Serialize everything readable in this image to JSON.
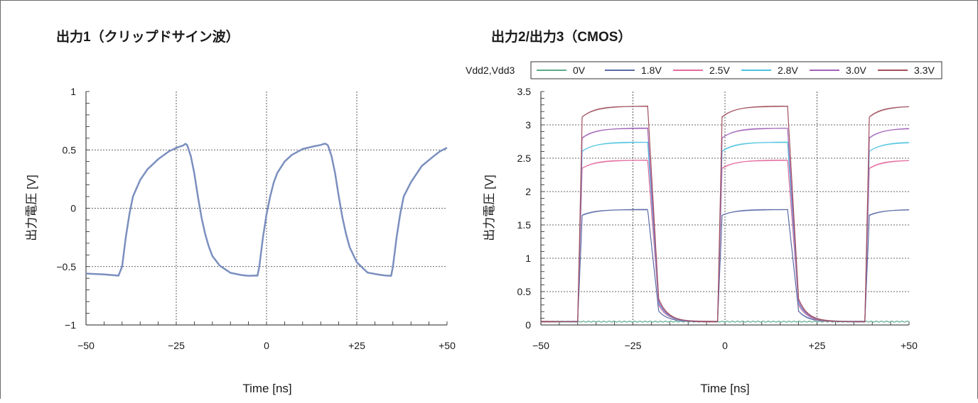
{
  "chart_data": [
    {
      "type": "line",
      "title": "出力1（クリップドサイン波）",
      "xlabel": "Time [ns]",
      "ylabel": "出力電圧 [V]",
      "xlim": [
        -50,
        50
      ],
      "ylim": [
        -1,
        1
      ],
      "x_ticks": [
        {
          "value": -50,
          "label": "−50"
        },
        {
          "value": -25,
          "label": "−25"
        },
        {
          "value": 0,
          "label": "0"
        },
        {
          "value": 25,
          "label": "+25"
        },
        {
          "value": 50,
          "label": "+50"
        }
      ],
      "y_ticks": [
        {
          "value": -1,
          "label": "−1"
        },
        {
          "value": -0.5,
          "label": "−0.5"
        },
        {
          "value": 0,
          "label": "0"
        },
        {
          "value": 0.5,
          "label": "0.5"
        },
        {
          "value": 1,
          "label": "1"
        }
      ],
      "grid": true,
      "series": [
        {
          "color": "#7b8fbf",
          "x": [
            -50,
            -45,
            -41,
            -40,
            -39,
            -38,
            -37,
            -35,
            -33,
            -30,
            -27,
            -25,
            -23,
            -22.5,
            -22,
            -21,
            -20,
            -19,
            -18,
            -17,
            -16,
            -15,
            -13,
            -10,
            -7,
            -5,
            -3,
            -2.5,
            -2,
            -1,
            0,
            1,
            2,
            3,
            5,
            7,
            10,
            13,
            15,
            16,
            16.5,
            17,
            18,
            19,
            20,
            21,
            22,
            23,
            25,
            28,
            31,
            33,
            34.5,
            35,
            36,
            37,
            38,
            40,
            43,
            46,
            48,
            50
          ],
          "y": [
            -0.56,
            -0.57,
            -0.58,
            -0.5,
            -0.25,
            -0.05,
            0.1,
            0.24,
            0.33,
            0.42,
            0.49,
            0.52,
            0.54,
            0.55,
            0.54,
            0.45,
            0.3,
            0.1,
            -0.08,
            -0.22,
            -0.33,
            -0.41,
            -0.49,
            -0.55,
            -0.57,
            -0.58,
            -0.58,
            -0.58,
            -0.5,
            -0.25,
            -0.05,
            0.1,
            0.22,
            0.3,
            0.4,
            0.46,
            0.51,
            0.53,
            0.54,
            0.55,
            0.55,
            0.54,
            0.45,
            0.3,
            0.1,
            -0.08,
            -0.22,
            -0.33,
            -0.46,
            -0.55,
            -0.57,
            -0.58,
            -0.58,
            -0.5,
            -0.25,
            -0.05,
            0.1,
            0.22,
            0.36,
            0.44,
            0.49,
            0.52
          ]
        }
      ]
    },
    {
      "type": "line",
      "title": "出力2/出力3（CMOS）",
      "xlabel": "Time [ns]",
      "ylabel": "出力電圧 [V]",
      "xlim": [
        -50,
        50
      ],
      "ylim": [
        0,
        3.5
      ],
      "x_ticks": [
        {
          "value": -50,
          "label": "−50"
        },
        {
          "value": -25,
          "label": "−25"
        },
        {
          "value": 0,
          "label": "0"
        },
        {
          "value": 25,
          "label": "+25"
        },
        {
          "value": 50,
          "label": "+50"
        }
      ],
      "y_ticks": [
        {
          "value": 0,
          "label": "0"
        },
        {
          "value": 0.5,
          "label": "0.5"
        },
        {
          "value": 1,
          "label": "1"
        },
        {
          "value": 1.5,
          "label": "1.5"
        },
        {
          "value": 2,
          "label": "2"
        },
        {
          "value": 2.5,
          "label": "2.5"
        },
        {
          "value": 3,
          "label": "3"
        },
        {
          "value": 3.5,
          "label": "3.5"
        }
      ],
      "grid": true,
      "legend": {
        "label": "Vdd2,Vdd3",
        "position": "top"
      },
      "pulse_edges": {
        "rise": [
          -40,
          -2,
          38
        ],
        "fall": [
          -21,
          17
        ]
      },
      "baseline": 0.05,
      "series": [
        {
          "name": "0V",
          "color": "#5aaa8a",
          "level": 0.05
        },
        {
          "name": "1.8V",
          "color": "#5a6aa6",
          "level": 1.73
        },
        {
          "name": "2.5V",
          "color": "#e46aa0",
          "level": 2.47
        },
        {
          "name": "2.8V",
          "color": "#4cc3e0",
          "level": 2.74
        },
        {
          "name": "3.0V",
          "color": "#a062b8",
          "level": 2.95
        },
        {
          "name": "3.3V",
          "color": "#a0505c",
          "level": 3.28
        }
      ]
    }
  ]
}
